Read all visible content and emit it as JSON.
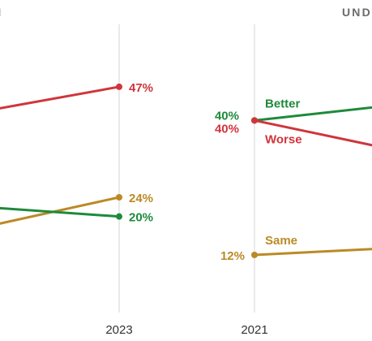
{
  "chart_data": [
    {
      "type": "line",
      "title": "NDEN",
      "x": [
        "2021",
        "2023"
      ],
      "x_visible_ticks": [
        "2023"
      ],
      "ylim": [
        0,
        60
      ],
      "grid": "vertical",
      "series": [
        {
          "name": "",
          "values": [
            null,
            47
          ],
          "value_labels": [
            "",
            "47%"
          ],
          "color": "#d0353c"
        },
        {
          "name": "",
          "values": [
            null,
            24
          ],
          "value_labels": [
            "",
            "24%"
          ],
          "color": "#bb8a26"
        },
        {
          "name": "",
          "values": [
            null,
            20
          ],
          "value_labels": [
            "",
            "20%"
          ],
          "color": "#1e8a3a"
        }
      ]
    },
    {
      "type": "line",
      "title": "UND",
      "x": [
        "2021",
        "2023"
      ],
      "x_visible_ticks": [
        "2021"
      ],
      "ylim": [
        0,
        60
      ],
      "grid": "vertical",
      "series": [
        {
          "name": "Better",
          "values": [
            40,
            null
          ],
          "value_labels": [
            "40%",
            ""
          ],
          "color": "#1e8a3a"
        },
        {
          "name": "Worse",
          "values": [
            40,
            null
          ],
          "value_labels": [
            "40%",
            ""
          ],
          "color": "#d0353c"
        },
        {
          "name": "Same",
          "values": [
            12,
            null
          ],
          "value_labels": [
            "12%",
            ""
          ],
          "color": "#bb8a26"
        }
      ]
    }
  ]
}
